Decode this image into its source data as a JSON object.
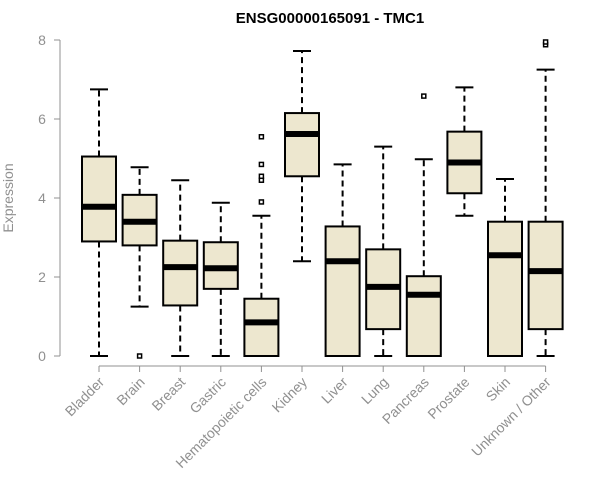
{
  "chart_data": {
    "type": "boxplot",
    "title": "ENSG00000165091 - TMC1",
    "xlabel": "",
    "ylabel": "Expression",
    "ylim": [
      0,
      8
    ],
    "yticks": [
      0,
      2,
      4,
      6,
      8
    ],
    "grid": false,
    "legend": "none",
    "box_fill": "#ede7cf",
    "box_stroke": "#000000",
    "axis_color": "#909090",
    "categories": [
      "Bladder",
      "Brain",
      "Breast",
      "Gastric",
      "Hematopoietic cells",
      "Kidney",
      "Liver",
      "Lung",
      "Pancreas",
      "Prostate",
      "Skin",
      "Unknown / Other"
    ],
    "boxes": [
      {
        "category": "Bladder",
        "whisker_low": 0,
        "q1": 2.9,
        "median": 3.78,
        "q3": 5.05,
        "whisker_high": 6.75,
        "outliers": []
      },
      {
        "category": "Brain",
        "whisker_low": 1.25,
        "q1": 2.8,
        "median": 3.4,
        "q3": 4.08,
        "whisker_high": 4.78,
        "outliers": [
          0
        ]
      },
      {
        "category": "Breast",
        "whisker_low": 0,
        "q1": 1.28,
        "median": 2.25,
        "q3": 2.92,
        "whisker_high": 4.45,
        "outliers": []
      },
      {
        "category": "Gastric",
        "whisker_low": 0,
        "q1": 1.7,
        "median": 2.22,
        "q3": 2.88,
        "whisker_high": 3.88,
        "outliers": []
      },
      {
        "category": "Hematopoietic cells",
        "whisker_low": 0,
        "q1": 0,
        "median": 0.85,
        "q3": 1.45,
        "whisker_high": 3.55,
        "outliers": [
          3.9,
          4.45,
          4.55,
          4.85,
          5.55
        ]
      },
      {
        "category": "Kidney",
        "whisker_low": 2.4,
        "q1": 4.55,
        "median": 5.62,
        "q3": 6.15,
        "whisker_high": 7.72,
        "outliers": []
      },
      {
        "category": "Liver",
        "whisker_low": 0,
        "q1": 0,
        "median": 2.4,
        "q3": 3.28,
        "whisker_high": 4.85,
        "outliers": []
      },
      {
        "category": "Lung",
        "whisker_low": 0,
        "q1": 0.68,
        "median": 1.75,
        "q3": 2.7,
        "whisker_high": 5.3,
        "outliers": []
      },
      {
        "category": "Pancreas",
        "whisker_low": 0,
        "q1": 0,
        "median": 1.55,
        "q3": 2.02,
        "whisker_high": 4.98,
        "outliers": [
          6.58
        ]
      },
      {
        "category": "Prostate",
        "whisker_low": 3.55,
        "q1": 4.12,
        "median": 4.9,
        "q3": 5.68,
        "whisker_high": 6.8,
        "outliers": []
      },
      {
        "category": "Skin",
        "whisker_low": 0,
        "q1": 0,
        "median": 2.55,
        "q3": 3.4,
        "whisker_high": 4.48,
        "outliers": []
      },
      {
        "category": "Unknown / Other",
        "whisker_low": 0,
        "q1": 0.68,
        "median": 2.15,
        "q3": 3.4,
        "whisker_high": 7.25,
        "outliers": [
          7.88,
          7.95
        ]
      }
    ]
  }
}
